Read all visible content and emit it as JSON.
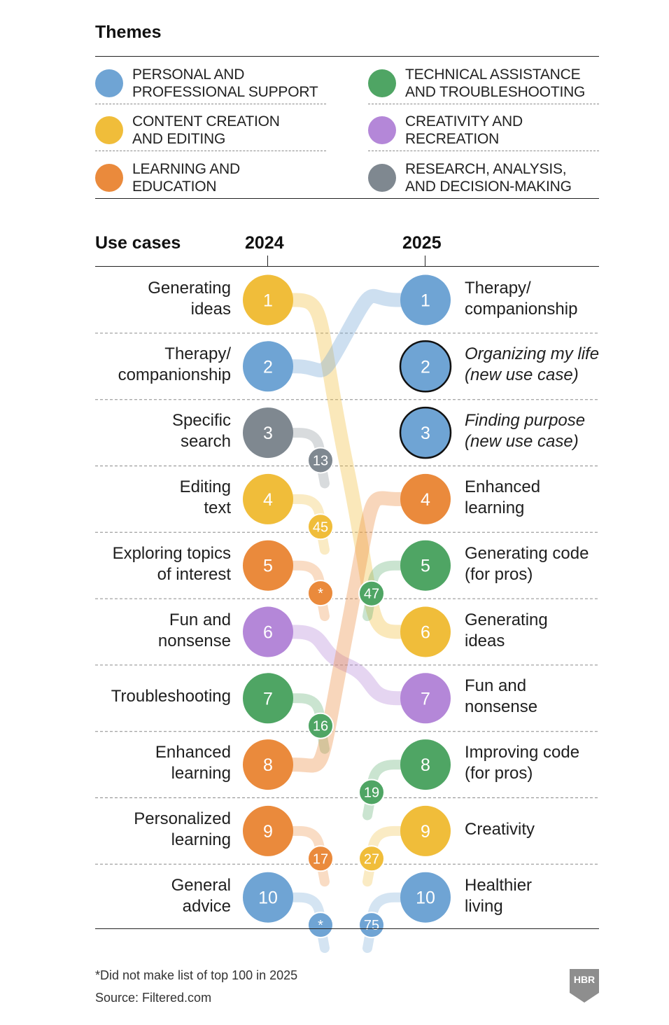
{
  "themes": {
    "title": "Themes",
    "items": [
      {
        "key": "personal",
        "label": "PERSONAL AND\nPROFESSIONAL SUPPORT",
        "color": "#6fa4d4"
      },
      {
        "key": "technical",
        "label": "TECHNICAL ASSISTANCE\nAND TROUBLESHOOTING",
        "color": "#4fa564"
      },
      {
        "key": "content",
        "label": "CONTENT CREATION\nAND EDITING",
        "color": "#f0bd3a"
      },
      {
        "key": "creativity",
        "label": "CREATIVITY AND\nRECREATION",
        "color": "#b487d8"
      },
      {
        "key": "learning",
        "label": "LEARNING AND\nEDUCATION",
        "color": "#ea8a3c"
      },
      {
        "key": "research",
        "label": "RESEARCH, ANALYSIS,\nAND DECISION-MAKING",
        "color": "#7f8890"
      }
    ]
  },
  "use_cases": {
    "title": "Use cases",
    "year_left": "2024",
    "year_right": "2025"
  },
  "chart_data": {
    "type": "slope-ranking",
    "left": [
      {
        "rank": "1",
        "label": "Generating\nideas",
        "theme": "content",
        "rank_2025": "6"
      },
      {
        "rank": "2",
        "label": "Therapy/\ncompanionship",
        "theme": "personal",
        "rank_2025": "1"
      },
      {
        "rank": "3",
        "label": "Specific\nsearch",
        "theme": "research",
        "rank_2025": "13"
      },
      {
        "rank": "4",
        "label": "Editing\ntext",
        "theme": "content",
        "rank_2025": "45"
      },
      {
        "rank": "5",
        "label": "Exploring topics\nof interest",
        "theme": "learning",
        "rank_2025": "*"
      },
      {
        "rank": "6",
        "label": "Fun and\nnonsense",
        "theme": "creativity",
        "rank_2025": "7"
      },
      {
        "rank": "7",
        "label": "Troubleshooting",
        "theme": "technical",
        "rank_2025": "16"
      },
      {
        "rank": "8",
        "label": "Enhanced\nlearning",
        "theme": "learning",
        "rank_2025": "4"
      },
      {
        "rank": "9",
        "label": "Personalized\nlearning",
        "theme": "learning",
        "rank_2025": "17"
      },
      {
        "rank": "10",
        "label": "General\nadvice",
        "theme": "personal",
        "rank_2025": "*"
      }
    ],
    "right": [
      {
        "rank": "1",
        "label": "Therapy/\ncompanionship",
        "theme": "personal",
        "new": false,
        "rank_2024": "2"
      },
      {
        "rank": "2",
        "label": "Organizing my life\n(new use case)",
        "theme": "personal",
        "new": true,
        "rank_2024": ""
      },
      {
        "rank": "3",
        "label": "Finding purpose\n(new use case)",
        "theme": "personal",
        "new": true,
        "rank_2024": ""
      },
      {
        "rank": "4",
        "label": "Enhanced\nlearning",
        "theme": "learning",
        "new": false,
        "rank_2024": "8"
      },
      {
        "rank": "5",
        "label": "Generating code\n(for pros)",
        "theme": "technical",
        "new": false,
        "rank_2024": "47"
      },
      {
        "rank": "6",
        "label": "Generating\nideas",
        "theme": "content",
        "new": false,
        "rank_2024": "1"
      },
      {
        "rank": "7",
        "label": "Fun and\nnonsense",
        "theme": "creativity",
        "new": false,
        "rank_2024": "6"
      },
      {
        "rank": "8",
        "label": "Improving code\n(for pros)",
        "theme": "technical",
        "new": false,
        "rank_2024": "19"
      },
      {
        "rank": "9",
        "label": "Creativity",
        "theme": "content",
        "new": false,
        "rank_2024": "27"
      },
      {
        "rank": "10",
        "label": "Healthier\nliving",
        "theme": "personal",
        "new": false,
        "rank_2024": "75"
      }
    ]
  },
  "footer": {
    "note": "*Did not make list of top 100 in 2025",
    "source": "Source: Filtered.com",
    "logo_text": "HBR"
  }
}
